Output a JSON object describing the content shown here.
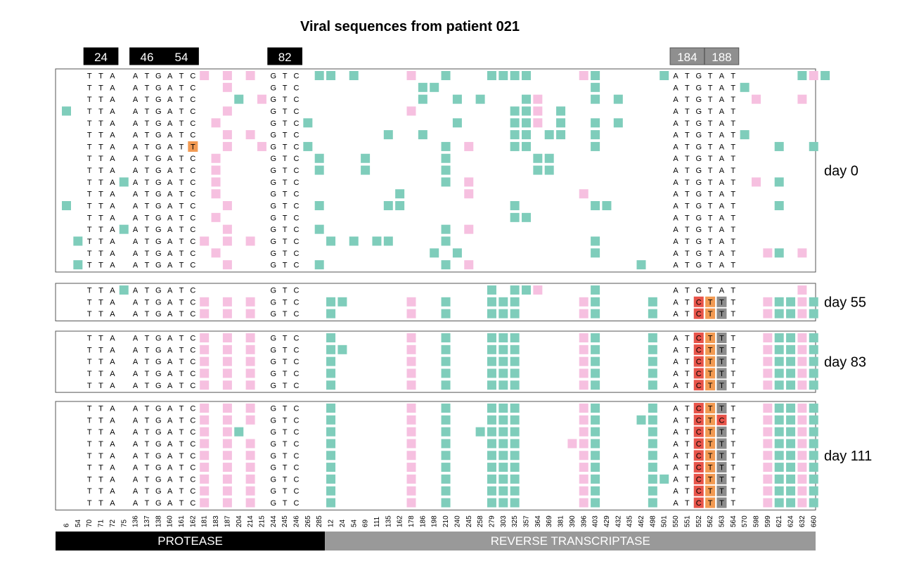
{
  "title": "Viral sequences from patient 021",
  "columns": [
    "6",
    "54",
    "70",
    "71",
    "72",
    "75",
    "136",
    "137",
    "138",
    "160",
    "161",
    "162",
    "181",
    "183",
    "187",
    "204",
    "214",
    "215",
    "244",
    "245",
    "246",
    "265",
    "285",
    "12",
    "24",
    "54",
    "69",
    "111",
    "135",
    "162",
    "178",
    "186",
    "198",
    "210",
    "240",
    "245",
    "258",
    "279",
    "303",
    "325",
    "357",
    "364",
    "369",
    "381",
    "390",
    "396",
    "403",
    "429",
    "432",
    "435",
    "462",
    "498",
    "501",
    "550",
    "551",
    "552",
    "562",
    "563",
    "564",
    "570",
    "598",
    "599",
    "621",
    "624",
    "632",
    "660"
  ],
  "codons": [
    {
      "label": "24",
      "style": "black",
      "from": 2,
      "to": 4
    },
    {
      "label": "46",
      "style": "black",
      "from": 6,
      "to": 8
    },
    {
      "label": "54",
      "style": "black",
      "from": 9,
      "to": 11
    },
    {
      "label": "82",
      "style": "black",
      "from": 18,
      "to": 20
    },
    {
      "label": "184",
      "style": "gray",
      "from": 53,
      "to": 55
    },
    {
      "label": "188",
      "style": "gray",
      "from": 56,
      "to": 58
    }
  ],
  "nt_columns": [
    2,
    3,
    4,
    6,
    7,
    8,
    9,
    10,
    11,
    18,
    19,
    20,
    53,
    54,
    55,
    56,
    57,
    58
  ],
  "ref": [
    "T",
    "T",
    "A",
    "A",
    "T",
    "G",
    "A",
    "T",
    "C",
    "G",
    "T",
    "C",
    "A",
    "T",
    "G",
    "T",
    "A",
    "T"
  ],
  "groups": [
    {
      "label": "day 0",
      "rows": [
        {
          "m": [],
          "t": [
            22,
            23
          ],
          "p": [
            12,
            14,
            16,
            30,
            45,
            65
          ],
          "g": [
            25,
            33,
            37,
            38,
            39,
            40,
            46,
            52,
            64,
            66
          ]
        },
        {
          "m": [],
          "t": [],
          "p": [
            14
          ],
          "g": [
            31,
            32,
            46,
            59
          ]
        },
        {
          "m": [],
          "t": [],
          "p": [
            17,
            41,
            60,
            64
          ],
          "g": [
            15,
            31,
            34,
            36,
            40,
            46,
            48
          ]
        },
        {
          "m": [],
          "t": [
            0
          ],
          "p": [
            14,
            30,
            41
          ],
          "g": [
            39,
            40,
            43
          ]
        },
        {
          "m": [],
          "t": [
            21
          ],
          "p": [
            13,
            41
          ],
          "g": [
            34,
            39,
            40,
            43,
            46,
            48
          ]
        },
        {
          "m": [],
          "t": [],
          "p": [
            14,
            16
          ],
          "g": [
            28,
            31,
            39,
            40,
            42,
            43,
            46,
            59
          ]
        },
        {
          "m": [],
          "t": [
            21
          ],
          "p": [
            14,
            17,
            35
          ],
          "g": [
            33,
            39,
            40,
            46,
            62,
            65
          ]
        },
        {
          "m": [],
          "t": [
            22
          ],
          "p": [
            13
          ],
          "g": [
            26,
            33,
            41,
            42
          ]
        },
        {
          "m": [],
          "t": [
            22
          ],
          "p": [
            13
          ],
          "g": [
            26,
            33,
            41,
            42
          ]
        },
        {
          "m": [],
          "t": [
            5
          ],
          "p": [
            13,
            35,
            60
          ],
          "g": [
            33,
            62
          ]
        },
        {
          "m": [],
          "t": [],
          "p": [
            13,
            35,
            45
          ],
          "g": [
            29
          ]
        },
        {
          "m": [],
          "t": [
            0,
            22
          ],
          "p": [
            14
          ],
          "g": [
            28,
            29,
            39,
            46,
            47,
            62
          ]
        },
        {
          "m": [],
          "t": [],
          "p": [
            13
          ],
          "g": [
            39,
            40
          ]
        },
        {
          "m": [],
          "t": [
            5,
            22
          ],
          "p": [
            14,
            35
          ],
          "g": [
            33
          ]
        },
        {
          "m": [],
          "t": [
            1,
            23,
            25
          ],
          "p": [
            12,
            14,
            16
          ],
          "g": [
            27,
            28,
            33,
            46
          ]
        },
        {
          "m": [],
          "t": [],
          "p": [
            13,
            61,
            64
          ],
          "g": [
            32,
            34,
            46,
            62
          ]
        },
        {
          "m": [],
          "t": [
            1,
            22
          ],
          "p": [
            14,
            35
          ],
          "g": [
            33,
            50
          ]
        }
      ]
    },
    {
      "label": "day 55",
      "rows": [
        {
          "m": [],
          "t": [
            5
          ],
          "p": [
            41,
            64
          ],
          "g": [
            37,
            39,
            40,
            46
          ]
        },
        {
          "m": [
            {
              "i": 14,
              "b": "C",
              "c": "red"
            },
            {
              "i": 15,
              "b": "T",
              "c": "orange"
            },
            {
              "i": 16,
              "b": "T",
              "c": "gray"
            }
          ],
          "t": [
            23,
            24
          ],
          "p": [
            12,
            14,
            16,
            30,
            45,
            61,
            64
          ],
          "g": [
            33,
            37,
            38,
            39,
            46,
            51,
            62,
            63,
            65
          ]
        },
        {
          "m": [
            {
              "i": 14,
              "b": "C",
              "c": "red"
            },
            {
              "i": 15,
              "b": "T",
              "c": "orange"
            },
            {
              "i": 16,
              "b": "T",
              "c": "gray"
            }
          ],
          "t": [
            23
          ],
          "p": [
            12,
            14,
            16,
            30,
            45,
            61,
            64
          ],
          "g": [
            33,
            37,
            38,
            39,
            46,
            51,
            62,
            63,
            65
          ]
        }
      ]
    },
    {
      "label": "day 83",
      "rows": [
        {
          "m": [
            {
              "i": 14,
              "b": "C",
              "c": "red"
            },
            {
              "i": 15,
              "b": "T",
              "c": "orange"
            },
            {
              "i": 16,
              "b": "T",
              "c": "gray"
            }
          ],
          "t": [
            23
          ],
          "p": [
            12,
            14,
            16,
            30,
            45,
            61,
            64
          ],
          "g": [
            33,
            37,
            38,
            39,
            46,
            51,
            62,
            63,
            65
          ]
        },
        {
          "m": [
            {
              "i": 14,
              "b": "C",
              "c": "red"
            },
            {
              "i": 15,
              "b": "T",
              "c": "orange"
            },
            {
              "i": 16,
              "b": "T",
              "c": "gray"
            }
          ],
          "t": [
            23,
            24
          ],
          "p": [
            12,
            14,
            16,
            30,
            45,
            61,
            64
          ],
          "g": [
            33,
            37,
            38,
            39,
            46,
            51,
            62,
            63,
            65
          ]
        },
        {
          "m": [
            {
              "i": 14,
              "b": "C",
              "c": "red"
            },
            {
              "i": 15,
              "b": "T",
              "c": "orange"
            },
            {
              "i": 16,
              "b": "T",
              "c": "gray"
            }
          ],
          "t": [
            23
          ],
          "p": [
            12,
            14,
            16,
            30,
            45,
            61,
            64
          ],
          "g": [
            33,
            37,
            38,
            39,
            46,
            51,
            62,
            63,
            65
          ]
        },
        {
          "m": [
            {
              "i": 14,
              "b": "C",
              "c": "red"
            },
            {
              "i": 15,
              "b": "T",
              "c": "orange"
            },
            {
              "i": 16,
              "b": "T",
              "c": "gray"
            }
          ],
          "t": [
            23
          ],
          "p": [
            12,
            14,
            16,
            30,
            45,
            61,
            64
          ],
          "g": [
            33,
            37,
            38,
            39,
            46,
            51,
            62,
            63,
            65
          ]
        },
        {
          "m": [
            {
              "i": 14,
              "b": "C",
              "c": "red"
            },
            {
              "i": 15,
              "b": "T",
              "c": "orange"
            },
            {
              "i": 16,
              "b": "T",
              "c": "gray"
            }
          ],
          "t": [
            23
          ],
          "p": [
            12,
            14,
            16,
            30,
            45,
            61,
            64
          ],
          "g": [
            33,
            37,
            38,
            39,
            46,
            51,
            62,
            63,
            65
          ]
        }
      ]
    },
    {
      "label": "day 111",
      "rows": [
        {
          "m": [
            {
              "i": 14,
              "b": "C",
              "c": "red"
            },
            {
              "i": 15,
              "b": "T",
              "c": "orange"
            },
            {
              "i": 16,
              "b": "T",
              "c": "gray"
            }
          ],
          "t": [
            23
          ],
          "p": [
            12,
            14,
            16,
            30,
            45,
            61,
            64
          ],
          "g": [
            33,
            37,
            38,
            39,
            46,
            51,
            62,
            63,
            65
          ]
        },
        {
          "m": [
            {
              "i": 14,
              "b": "C",
              "c": "red"
            },
            {
              "i": 15,
              "b": "T",
              "c": "orange"
            },
            {
              "i": 16,
              "b": "C",
              "c": "red"
            }
          ],
          "t": [
            23
          ],
          "p": [
            12,
            14,
            16,
            30,
            45,
            61,
            64
          ],
          "g": [
            33,
            37,
            38,
            39,
            46,
            50,
            51,
            62,
            63,
            65
          ]
        },
        {
          "m": [
            {
              "i": 14,
              "b": "C",
              "c": "red"
            },
            {
              "i": 15,
              "b": "T",
              "c": "orange"
            },
            {
              "i": 16,
              "b": "T",
              "c": "gray"
            }
          ],
          "t": [
            23
          ],
          "p": [
            12,
            14,
            30,
            45,
            61,
            64
          ],
          "g": [
            15,
            33,
            36,
            37,
            38,
            39,
            46,
            51,
            62,
            63,
            65
          ]
        },
        {
          "m": [
            {
              "i": 14,
              "b": "C",
              "c": "red"
            },
            {
              "i": 15,
              "b": "T",
              "c": "orange"
            },
            {
              "i": 16,
              "b": "T",
              "c": "gray"
            }
          ],
          "t": [
            23
          ],
          "p": [
            12,
            14,
            16,
            30,
            44,
            45,
            61,
            64
          ],
          "g": [
            33,
            37,
            38,
            39,
            46,
            51,
            62,
            63,
            65
          ]
        },
        {
          "m": [
            {
              "i": 14,
              "b": "C",
              "c": "red"
            },
            {
              "i": 15,
              "b": "T",
              "c": "orange"
            },
            {
              "i": 16,
              "b": "T",
              "c": "gray"
            }
          ],
          "t": [
            23
          ],
          "p": [
            12,
            14,
            16,
            30,
            45,
            61,
            64
          ],
          "g": [
            33,
            37,
            38,
            39,
            46,
            51,
            62,
            63,
            65
          ]
        },
        {
          "m": [
            {
              "i": 14,
              "b": "C",
              "c": "red"
            },
            {
              "i": 15,
              "b": "T",
              "c": "orange"
            },
            {
              "i": 16,
              "b": "T",
              "c": "gray"
            }
          ],
          "t": [
            23
          ],
          "p": [
            12,
            14,
            16,
            30,
            45,
            61,
            64
          ],
          "g": [
            33,
            37,
            38,
            39,
            46,
            51,
            62,
            63,
            65
          ]
        },
        {
          "m": [
            {
              "i": 14,
              "b": "C",
              "c": "red"
            },
            {
              "i": 15,
              "b": "T",
              "c": "orange"
            },
            {
              "i": 16,
              "b": "T",
              "c": "gray"
            }
          ],
          "t": [
            23
          ],
          "p": [
            12,
            14,
            16,
            30,
            45,
            61,
            64
          ],
          "g": [
            33,
            37,
            38,
            39,
            46,
            51,
            52,
            62,
            63,
            65
          ]
        },
        {
          "m": [
            {
              "i": 14,
              "b": "C",
              "c": "red"
            },
            {
              "i": 15,
              "b": "T",
              "c": "orange"
            },
            {
              "i": 16,
              "b": "T",
              "c": "gray"
            }
          ],
          "t": [
            23
          ],
          "p": [
            12,
            14,
            16,
            30,
            45,
            61,
            64
          ],
          "g": [
            33,
            37,
            38,
            39,
            46,
            51,
            62,
            63,
            65
          ]
        },
        {
          "m": [
            {
              "i": 14,
              "b": "C",
              "c": "red"
            },
            {
              "i": 15,
              "b": "T",
              "c": "orange"
            },
            {
              "i": 16,
              "b": "T",
              "c": "gray"
            }
          ],
          "t": [
            23
          ],
          "p": [
            12,
            14,
            16,
            30,
            45,
            61,
            64
          ],
          "g": [
            33,
            37,
            38,
            39,
            46,
            51,
            62,
            63,
            65
          ]
        }
      ]
    },
    {
      "__fix_day0_row6": "",
      "label": "",
      "rows": []
    }
  ],
  "regions": [
    {
      "label": "PROTEASE",
      "style": "black",
      "from": 0,
      "to": 22
    },
    {
      "label": "REVERSE TRANSCRIPTASE",
      "style": "gray",
      "from": 23,
      "to": 65
    }
  ],
  "colors": {
    "green": "#7fcdbb",
    "pink": "#f6c0e0",
    "orange": "#f29a52",
    "red": "#e8544a",
    "gray": "#8c8c8c",
    "black": "#000000",
    "region_gray": "#999999",
    "header_gray": "#8f8f8f"
  }
}
